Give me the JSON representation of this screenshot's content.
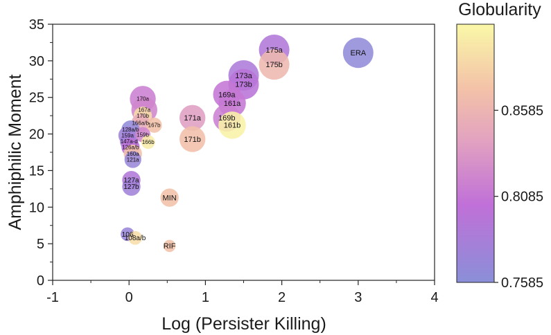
{
  "chart_data": {
    "type": "scatter",
    "title": "",
    "xlabel": "Log (Persister Killing)",
    "ylabel": "Amphiphilic Moment",
    "xlim": [
      -1,
      4
    ],
    "ylim": [
      0,
      35
    ],
    "xticks": [
      "-1",
      "0",
      "1",
      "2",
      "3",
      "4"
    ],
    "yticks": [
      "0",
      "5",
      "10",
      "15",
      "20",
      "25",
      "30",
      "35"
    ],
    "colorbar": {
      "title": "Globularity",
      "range": [
        0.7585,
        0.9085
      ],
      "ticks": [
        "0.7585",
        "0.8085",
        "0.8585"
      ]
    },
    "points": [
      {
        "label": "ERA",
        "x": 3.0,
        "y": 31.1,
        "c": 0.765,
        "s": 1.0,
        "fs": 11
      },
      {
        "label": "175a",
        "x": 1.9,
        "y": 31.5,
        "c": 0.79,
        "s": 1.0,
        "fs": 11
      },
      {
        "label": "175b",
        "x": 1.9,
        "y": 29.5,
        "c": 0.862,
        "s": 1.0,
        "fs": 11
      },
      {
        "label": "173a",
        "x": 1.5,
        "y": 28.0,
        "c": 0.788,
        "s": 1.0,
        "fs": 11
      },
      {
        "label": "173b",
        "x": 1.5,
        "y": 26.8,
        "c": 0.798,
        "s": 1.0,
        "fs": 11
      },
      {
        "label": "169a",
        "x": 1.28,
        "y": 25.4,
        "c": 0.808,
        "s": 0.9,
        "fs": 11
      },
      {
        "label": "161a",
        "x": 1.35,
        "y": 24.2,
        "c": 0.81,
        "s": 0.9,
        "fs": 11
      },
      {
        "label": "169b",
        "x": 1.28,
        "y": 22.2,
        "c": 0.815,
        "s": 0.9,
        "fs": 11
      },
      {
        "label": "161b",
        "x": 1.35,
        "y": 21.2,
        "c": 0.905,
        "s": 0.9,
        "fs": 11
      },
      {
        "label": "171a",
        "x": 0.83,
        "y": 22.2,
        "c": 0.838,
        "s": 0.85,
        "fs": 11
      },
      {
        "label": "171b",
        "x": 0.83,
        "y": 19.3,
        "c": 0.868,
        "s": 0.85,
        "fs": 11
      },
      {
        "label": "170a",
        "x": 0.18,
        "y": 24.8,
        "c": 0.815,
        "s": 0.85,
        "fs": 8
      },
      {
        "label": "167a",
        "x": 0.2,
        "y": 23.3,
        "c": 0.82,
        "s": 0.85,
        "fs": 8
      },
      {
        "label": "170b",
        "x": 0.18,
        "y": 22.5,
        "c": 0.89,
        "s": 0.6,
        "fs": 8
      },
      {
        "label": "166a/b",
        "x": 0.15,
        "y": 21.5,
        "c": 0.85,
        "s": 0.6,
        "fs": 8
      },
      {
        "label": "167b",
        "x": 0.33,
        "y": 21.2,
        "c": 0.87,
        "s": 0.5,
        "fs": 8
      },
      {
        "label": "128a/b",
        "x": 0.02,
        "y": 20.6,
        "c": 0.765,
        "s": 0.6,
        "fs": 8
      },
      {
        "label": "159a",
        "x": -0.02,
        "y": 19.8,
        "c": 0.775,
        "s": 0.6,
        "fs": 8
      },
      {
        "label": "159b",
        "x": 0.18,
        "y": 19.9,
        "c": 0.82,
        "s": 0.5,
        "fs": 8
      },
      {
        "label": "147a-d",
        "x": 0.0,
        "y": 19.0,
        "c": 0.78,
        "s": 0.6,
        "fs": 8
      },
      {
        "label": "166b",
        "x": 0.25,
        "y": 18.9,
        "c": 0.9,
        "s": 0.45,
        "fs": 8
      },
      {
        "label": "126a/b",
        "x": 0.02,
        "y": 18.2,
        "c": 0.8,
        "s": 0.6,
        "fs": 8
      },
      {
        "label": "160a",
        "x": 0.05,
        "y": 17.3,
        "c": 0.87,
        "s": 0.6,
        "fs": 8
      },
      {
        "label": "121a",
        "x": 0.05,
        "y": 16.5,
        "c": 0.77,
        "s": 0.55,
        "fs": 8
      },
      {
        "label": "127a",
        "x": 0.03,
        "y": 13.7,
        "c": 0.79,
        "s": 0.6,
        "fs": 10
      },
      {
        "label": "127b",
        "x": 0.03,
        "y": 12.8,
        "c": 0.778,
        "s": 0.6,
        "fs": 10
      },
      {
        "label": "MIN",
        "x": 0.53,
        "y": 11.3,
        "c": 0.87,
        "s": 0.6,
        "fs": 11
      },
      {
        "label": "106",
        "x": -0.02,
        "y": 6.3,
        "c": 0.772,
        "s": 0.45,
        "fs": 10
      },
      {
        "label": "108a/b",
        "x": 0.08,
        "y": 5.8,
        "c": 0.89,
        "s": 0.45,
        "fs": 10
      },
      {
        "label": "RIF",
        "x": 0.53,
        "y": 4.7,
        "c": 0.87,
        "s": 0.4,
        "fs": 11
      }
    ]
  }
}
